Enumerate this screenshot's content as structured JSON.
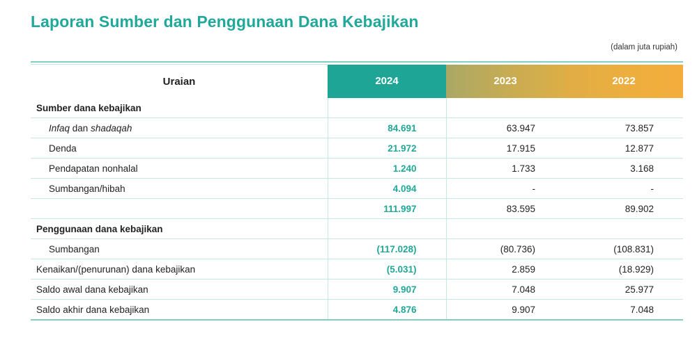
{
  "title": "Laporan Sumber dan Penggunaan Dana Kebajikan",
  "unit_note": "(dalam juta rupiah)",
  "header": {
    "label": "Uraian",
    "y2024": "2024",
    "y2023": "2023",
    "y2022": "2022"
  },
  "rows": [
    {
      "label": "Sumber dana kebajikan",
      "v2024": "",
      "v2023": "",
      "v2022": ""
    },
    {
      "label_italic_1": "Infaq",
      "label_mid": " dan ",
      "label_italic_2": "shadaqah",
      "v2024": "84.691",
      "v2023": "63.947",
      "v2022": "73.857"
    },
    {
      "label": "Denda",
      "v2024": "21.972",
      "v2023": "17.915",
      "v2022": "12.877"
    },
    {
      "label": "Pendapatan nonhalal",
      "v2024": "1.240",
      "v2023": "1.733",
      "v2022": "3.168"
    },
    {
      "label": "Sumbangan/hibah",
      "v2024": "4.094",
      "v2023": "-",
      "v2022": "-"
    },
    {
      "label": "",
      "v2024": "111.997",
      "v2023": "83.595",
      "v2022": "89.902"
    },
    {
      "label": "Penggunaan dana kebajikan",
      "v2024": "",
      "v2023": "",
      "v2022": ""
    },
    {
      "label": "Sumbangan",
      "v2024": "(117.028)",
      "v2023": "(80.736)",
      "v2022": "(108.831)"
    },
    {
      "label": "Kenaikan/(penurunan) dana kebajikan",
      "v2024": "(5.031)",
      "v2023": "2.859",
      "v2022": "(18.929)"
    },
    {
      "label": "Saldo awal dana kebajikan",
      "v2024": "9.907",
      "v2023": "7.048",
      "v2022": "25.977"
    },
    {
      "label": "Saldo akhir dana kebajikan",
      "v2024": "4.876",
      "v2023": "9.907",
      "v2022": "7.048"
    }
  ],
  "colors": {
    "accent": "#20a89a",
    "header_2024": "#1fa596",
    "header_2023": "#c9ac52",
    "header_2022": "#f3ad3c"
  }
}
